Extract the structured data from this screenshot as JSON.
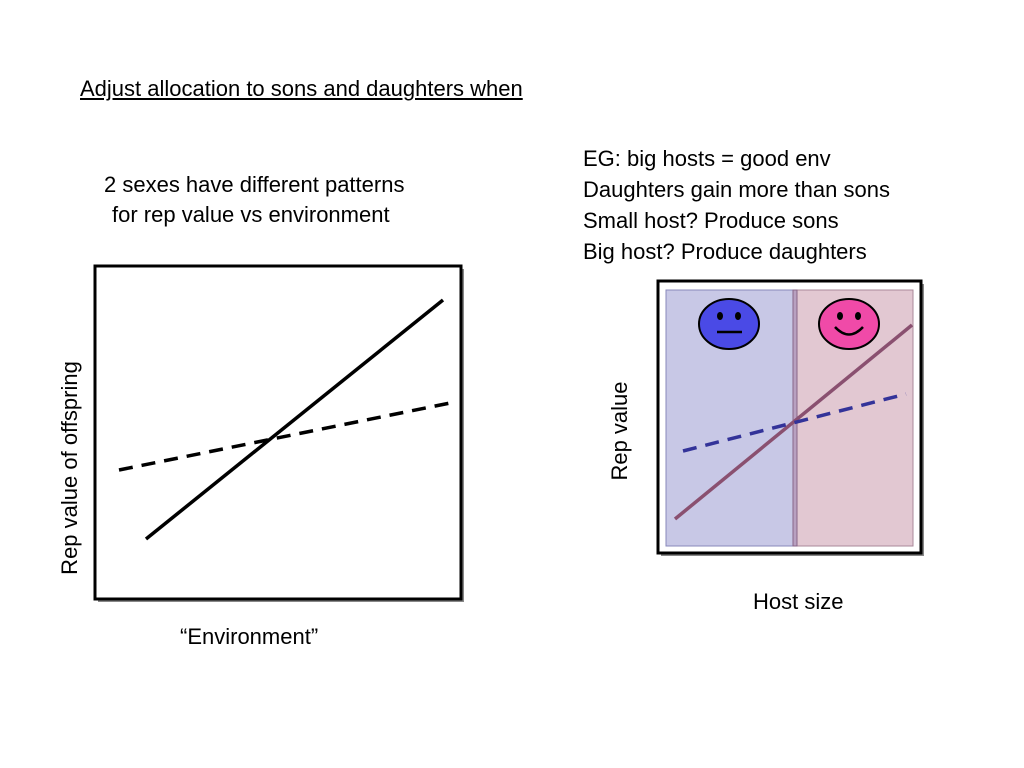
{
  "title": "Adjust allocation to sons and daughters when",
  "left_panel": {
    "caption_lines": [
      "2 sexes have different patterns",
      "for rep value vs environment"
    ],
    "ylabel": "Rep value of offspring",
    "xlabel": "“Environment”"
  },
  "right_panel": {
    "caption_lines": [
      "EG: big hosts = good env",
      "Daughters gain more than sons",
      "Small host? Produce sons",
      "Big host? Produce daughters"
    ],
    "ylabel": "Rep value",
    "xlabel": "Host size",
    "faces": [
      "neutral-face-icon",
      "smiley-face-icon"
    ]
  },
  "colors": {
    "son_region": "#c8c8e6",
    "daughter_region": "#e2c8d2",
    "son_face": "#4a4ae6",
    "daughter_face": "#f04aa8",
    "daughter_line": "#8a5070",
    "son_line": "#333399"
  }
}
